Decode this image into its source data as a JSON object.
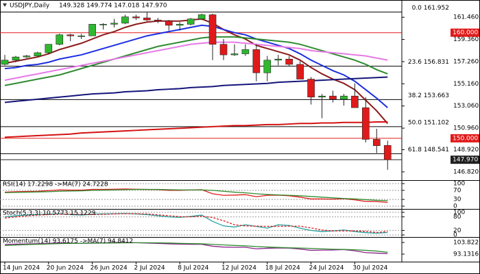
{
  "chart_data": [
    {
      "type": "candlestick",
      "title": "USDJPY,Daily",
      "subtitle": "149.328 149.774 147.018 147.970",
      "categories": [
        "14 Jun 2024",
        null,
        null,
        null,
        "20 Jun 2024",
        null,
        null,
        null,
        "26 Jun 2024",
        null,
        null,
        null,
        "2 Jul 2024",
        null,
        null,
        null,
        "8 Jul 2024",
        null,
        null,
        null,
        "12 Jul 2024",
        null,
        null,
        null,
        "18 Jul 2024",
        null,
        null,
        null,
        "24 Jul 2024",
        null,
        null,
        null,
        "30 Jul 2024",
        null,
        null,
        null
      ],
      "open": [
        157.0,
        157.4,
        157.7,
        157.8,
        158.1,
        158.9,
        159.8,
        159.7,
        159.7,
        160.8,
        160.8,
        160.9,
        161.5,
        161.4,
        161.2,
        161.1,
        160.7,
        160.8,
        161.3,
        161.7,
        158.9,
        157.9,
        158.0,
        158.4,
        156.2,
        157.4,
        157.5,
        157.0,
        155.6,
        153.9,
        154.0,
        153.7,
        154.0,
        152.9,
        149.9,
        149.328
      ],
      "high": [
        157.9,
        157.8,
        157.9,
        158.2,
        158.9,
        159.9,
        159.9,
        159.9,
        160.8,
        160.9,
        161.3,
        161.7,
        161.7,
        161.95,
        161.4,
        161.2,
        161.0,
        161.4,
        161.8,
        161.8,
        159.4,
        158.9,
        158.9,
        158.9,
        157.8,
        157.9,
        157.8,
        157.3,
        155.8,
        154.2,
        154.5,
        154.2,
        155.2,
        153.9,
        150.9,
        149.774
      ],
      "low": [
        156.9,
        157.2,
        157.6,
        157.8,
        158.0,
        158.8,
        159.2,
        159.4,
        159.7,
        160.3,
        160.5,
        160.8,
        161.2,
        161.1,
        160.9,
        160.2,
        160.2,
        160.7,
        161.2,
        157.4,
        157.4,
        157.8,
        157.8,
        155.4,
        155.4,
        156.9,
        156.8,
        155.6,
        153.2,
        151.9,
        153.4,
        153.1,
        152.9,
        149.6,
        148.6,
        147.018
      ],
      "close": [
        157.4,
        157.7,
        157.8,
        158.1,
        158.9,
        159.8,
        159.7,
        159.7,
        160.8,
        160.8,
        160.9,
        161.5,
        161.4,
        161.2,
        161.1,
        160.7,
        160.8,
        161.3,
        161.7,
        158.9,
        157.9,
        158.0,
        158.4,
        156.2,
        157.4,
        157.5,
        157.0,
        155.6,
        153.9,
        154.0,
        153.7,
        154.0,
        152.9,
        149.9,
        149.3,
        147.97
      ],
      "up_color": "#2fb82f",
      "down_color": "#e01a1a",
      "series": [
        {
          "color": "#8b1a1a",
          "values": [
            157.1,
            157.3,
            157.5,
            157.7,
            158.0,
            158.4,
            158.7,
            159.0,
            159.4,
            159.8,
            160.1,
            160.5,
            160.8,
            161.0,
            161.1,
            161.1,
            161.1,
            161.2,
            161.3,
            160.9,
            160.3,
            159.8,
            159.4,
            158.8,
            158.5,
            158.2,
            157.9,
            157.4,
            156.7,
            156.1,
            155.6,
            155.2,
            154.6,
            153.6,
            152.6,
            151.4
          ]
        },
        {
          "color": "#1a2ee0",
          "values": [
            156.6,
            156.7,
            156.9,
            157.0,
            157.2,
            157.5,
            157.7,
            157.9,
            158.2,
            158.5,
            158.8,
            159.1,
            159.4,
            159.7,
            159.9,
            160.1,
            160.3,
            160.5,
            160.7,
            160.6,
            160.3,
            160.0,
            159.8,
            159.4,
            159.1,
            158.8,
            158.5,
            158.0,
            157.4,
            156.9,
            156.4,
            156.0,
            155.4,
            154.6,
            153.8,
            152.9
          ]
        },
        {
          "color": "#2e8b2e",
          "values": [
            155.0,
            155.2,
            155.4,
            155.6,
            155.8,
            156.0,
            156.3,
            156.6,
            156.9,
            157.2,
            157.5,
            157.8,
            158.1,
            158.4,
            158.7,
            158.9,
            159.1,
            159.3,
            159.5,
            159.6,
            159.6,
            159.6,
            159.5,
            159.4,
            159.3,
            159.2,
            159.1,
            158.9,
            158.6,
            158.3,
            158.0,
            157.7,
            157.4,
            157.0,
            156.5,
            156.1
          ]
        },
        {
          "color": "#e67ae6",
          "values": [
            155.5,
            155.7,
            155.9,
            156.1,
            156.3,
            156.5,
            156.7,
            156.9,
            157.1,
            157.3,
            157.5,
            157.7,
            157.9,
            158.1,
            158.3,
            158.5,
            158.7,
            158.9,
            159.0,
            159.1,
            159.1,
            159.1,
            159.0,
            158.9,
            158.8,
            158.7,
            158.6,
            158.5,
            158.3,
            158.2,
            158.1,
            158.0,
            157.9,
            157.8,
            157.6,
            157.4
          ]
        },
        {
          "color": "#14147a",
          "values": [
            153.4,
            153.5,
            153.6,
            153.7,
            153.8,
            153.9,
            154.0,
            154.1,
            154.2,
            154.25,
            154.3,
            154.4,
            154.45,
            154.5,
            154.6,
            154.65,
            154.7,
            154.8,
            154.85,
            154.9,
            155.0,
            155.05,
            155.1,
            155.15,
            155.2,
            155.3,
            155.35,
            155.4,
            155.45,
            155.5,
            155.55,
            155.6,
            155.65,
            155.7,
            155.75,
            155.8
          ]
        },
        {
          "color": "#d41010",
          "values": [
            150.1,
            150.15,
            150.2,
            150.25,
            150.3,
            150.35,
            150.4,
            150.5,
            150.55,
            150.6,
            150.65,
            150.7,
            150.75,
            150.8,
            150.85,
            150.9,
            150.95,
            151.0,
            151.05,
            151.1,
            151.15,
            151.2,
            151.2,
            151.25,
            151.3,
            151.3,
            151.35,
            151.4,
            151.4,
            151.45,
            151.45,
            151.5,
            151.5,
            151.5,
            151.55,
            151.55
          ]
        }
      ],
      "levels": [
        {
          "value": 160,
          "label": "160.000",
          "color": "#e01a1a"
        },
        {
          "value": 150,
          "label": "150.000",
          "color": "#e01a1a"
        }
      ],
      "price": {
        "value": 147.97,
        "label": "147.970",
        "color": "#202020"
      },
      "fibonacci": [
        {
          "value": 161.952,
          "label": "0.0 161.952"
        },
        {
          "value": 156.831,
          "label": "23.6 156.831"
        },
        {
          "value": 153.663,
          "label": "38.2 153.663"
        },
        {
          "value": 151.102,
          "label": "50.0 151.102"
        },
        {
          "value": 148.541,
          "label": "61.8 148.541"
        }
      ],
      "ylim": [
        146.1,
        162.9
      ],
      "yticks": [
        {
          "value": 161.46,
          "label": "161.460"
        },
        {
          "value": 159.36,
          "label": "159.360"
        },
        {
          "value": 157.26,
          "label": "157.260"
        },
        {
          "value": 155.16,
          "label": "155.160"
        },
        {
          "value": 153.06,
          "label": "153.060"
        },
        {
          "value": 150.96,
          "label": "150.960"
        },
        {
          "value": 148.92,
          "label": "148.920"
        },
        {
          "value": 146.82,
          "label": "146.820"
        }
      ],
      "grid": false
    },
    {
      "type": "line",
      "title": "RSI(14) 17.2298 ->MA(7) 24.7228",
      "series": [
        {
          "color": "#e01a1a",
          "values": [
            62,
            64,
            65,
            66,
            69,
            72,
            71,
            71,
            74,
            74,
            75,
            76,
            75,
            74,
            73,
            70,
            70,
            72,
            73,
            55,
            48,
            49,
            51,
            42,
            48,
            49,
            46,
            40,
            32,
            32,
            31,
            33,
            28,
            21,
            20,
            17.2298
          ]
        },
        {
          "color": "#2e8b2e",
          "values": [
            60,
            61,
            62,
            63,
            64,
            66,
            67,
            68,
            70,
            71,
            72,
            73,
            74,
            74,
            74,
            73,
            72,
            72,
            72,
            70,
            66,
            62,
            59,
            55,
            52,
            50,
            48,
            46,
            43,
            40,
            37,
            34,
            32,
            29,
            26,
            24.7228
          ]
        }
      ],
      "ylim": [
        0,
        100
      ],
      "yticks": [
        100,
        70,
        30,
        0
      ],
      "grid": true
    },
    {
      "type": "line",
      "title": "Stoch(5,3,3) 10.5773 15.1229",
      "series": [
        {
          "color": "#20a0a0",
          "values": [
            80,
            85,
            88,
            90,
            92,
            94,
            90,
            88,
            92,
            93,
            94,
            95,
            93,
            90,
            85,
            80,
            78,
            82,
            88,
            60,
            40,
            35,
            45,
            38,
            30,
            45,
            42,
            30,
            20,
            15,
            18,
            22,
            15,
            10,
            8,
            10.5773
          ]
        },
        {
          "color": "#e01a1a",
          "dash": true,
          "values": [
            75,
            80,
            84,
            88,
            90,
            92,
            92,
            91,
            90,
            91,
            93,
            94,
            94,
            93,
            89,
            85,
            81,
            80,
            83,
            77,
            63,
            45,
            40,
            39,
            38,
            38,
            39,
            39,
            31,
            22,
            18,
            18,
            18,
            16,
            11,
            15.1229
          ]
        }
      ],
      "ylim": [
        0,
        100
      ],
      "yticks": [
        100,
        80,
        20,
        0
      ],
      "grid": true
    },
    {
      "type": "line",
      "title": "Momentum(14) 93.6175 ->MA(7) 94.8412",
      "series": [
        {
          "color": "#8a208a",
          "values": [
            102,
            102.3,
            102.5,
            102.7,
            103,
            103.5,
            103.3,
            103,
            103.5,
            103.6,
            103.8,
            103.9,
            103.6,
            103.3,
            103,
            102.6,
            102.3,
            102.2,
            102.2,
            100.4,
            99.6,
            99.4,
            99.4,
            98,
            98.5,
            98.8,
            98.6,
            97.8,
            96.6,
            96.8,
            96.9,
            97.3,
            96.2,
            94.5,
            94,
            93.6175
          ]
        },
        {
          "color": "#2e8b2e",
          "values": [
            101,
            101.5,
            101.9,
            102.2,
            102.5,
            102.8,
            103,
            103.1,
            103.2,
            103.3,
            103.4,
            103.5,
            103.6,
            103.6,
            103.5,
            103.3,
            103,
            102.8,
            102.6,
            102.1,
            101.6,
            101.1,
            100.7,
            100.1,
            99.6,
            99.3,
            98.9,
            98.7,
            98.4,
            98.0,
            97.6,
            97.4,
            97.1,
            96.6,
            95.9,
            94.8412
          ]
        }
      ],
      "ylim": [
        86.8,
        107.6
      ],
      "yticks": [
        103.8221,
        93.1316
      ],
      "grid": false
    }
  ]
}
